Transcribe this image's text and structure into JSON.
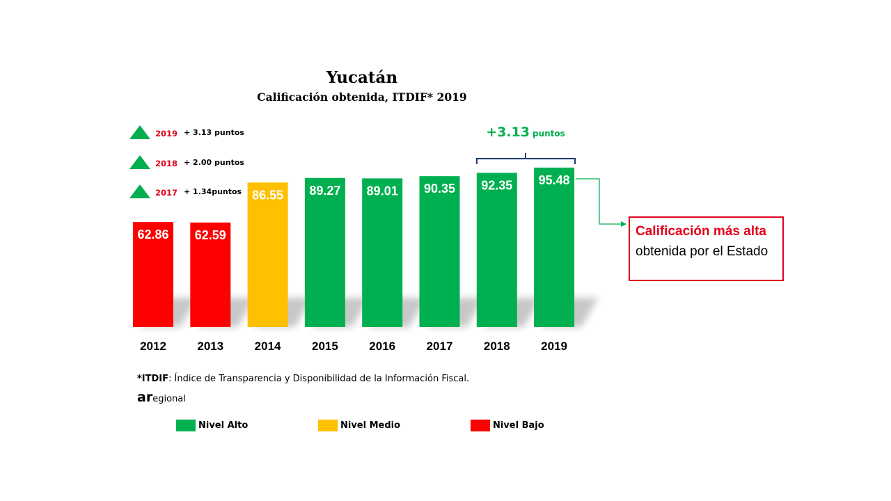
{
  "chart_data": {
    "type": "bar",
    "title": "Yucatán",
    "subtitle": "Calificación obtenida, ITDIF* 2019",
    "categories": [
      "2012",
      "2013",
      "2014",
      "2015",
      "2016",
      "2017",
      "2018",
      "2019"
    ],
    "values": [
      62.86,
      62.59,
      86.55,
      89.27,
      89.01,
      90.35,
      92.35,
      95.48
    ],
    "value_labels": [
      "62.86",
      "62.59",
      "86.55",
      "89.27",
      "89.01",
      "90.35",
      "92.35",
      "95.48"
    ],
    "levels": [
      "Nivel Bajo",
      "Nivel Bajo",
      "Nivel Medio",
      "Nivel Alto",
      "Nivel Alto",
      "Nivel Alto",
      "Nivel Alto",
      "Nivel Alto"
    ],
    "legend": [
      {
        "label": "Nivel Alto",
        "color": "#00b050"
      },
      {
        "label": "Nivel Medio",
        "color": "#ffc000"
      },
      {
        "label": "Nivel Bajo",
        "color": "#ff0000"
      }
    ],
    "legend_placement": "bottom",
    "grid": false,
    "xlabel": "",
    "ylabel": ""
  },
  "deltas": [
    {
      "year": "2019",
      "text": "+ 3.13 puntos"
    },
    {
      "year": "2018",
      "text": "+ 2.00 puntos"
    },
    {
      "year": "2017",
      "text": "+ 1.34puntos"
    }
  ],
  "bracket": {
    "value": "+3.13",
    "unit": "puntos"
  },
  "callout": {
    "bold": "Calificación más alta",
    "rest": "obtenida por el Estado"
  },
  "footnote": {
    "bold": "*ITDIF",
    "text": ": Índice de Transparencia y Disponibilidad de la Información Fiscal."
  },
  "source": {
    "big": "ar",
    "small": "egional"
  },
  "colors": {
    "alto": "#00b050",
    "medio": "#ffc000",
    "bajo": "#ff0000",
    "callout_border": "#e0001b"
  }
}
